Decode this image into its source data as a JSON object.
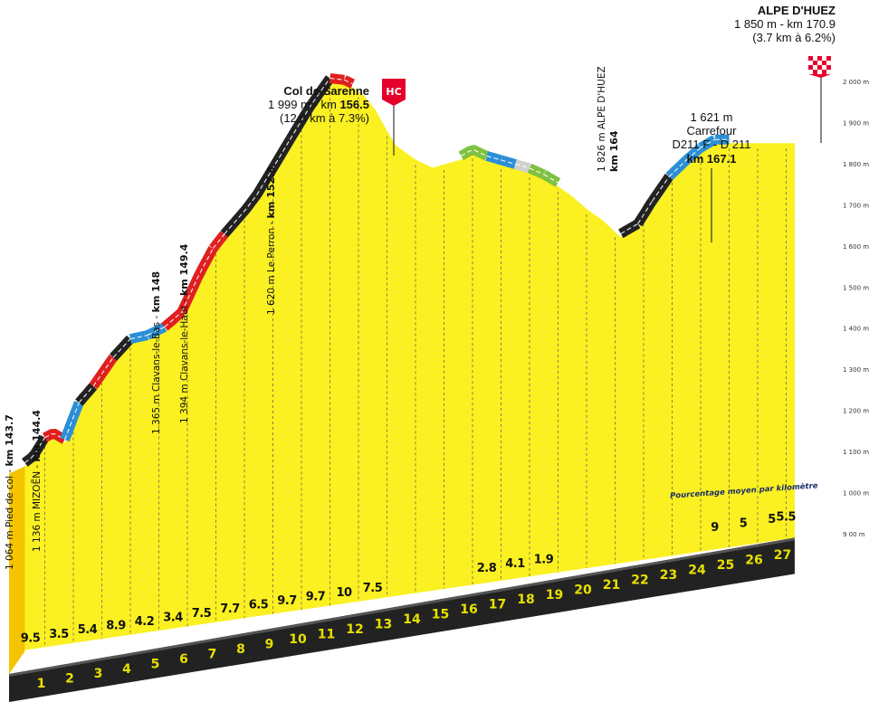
{
  "chart_data": {
    "type": "area",
    "xlabel": "",
    "ylabel": "",
    "ylim": [
      900,
      2000
    ],
    "x_ticks": [
      1,
      2,
      3,
      4,
      5,
      6,
      7,
      8,
      9,
      10,
      11,
      12,
      13,
      14,
      15,
      16,
      17,
      18,
      19,
      20,
      21,
      22,
      23,
      24,
      25,
      26,
      27
    ],
    "y_ticks": [
      {
        "value": 900,
        "label": "9 00 m"
      },
      {
        "value": 1000,
        "label": "1 000 m"
      },
      {
        "value": 1100,
        "label": "1 100 m"
      },
      {
        "value": 1200,
        "label": "1 200 m"
      },
      {
        "value": 1300,
        "label": "1 300 m"
      },
      {
        "value": 1400,
        "label": "1 400 m"
      },
      {
        "value": 1500,
        "label": "1 500 m"
      },
      {
        "value": 1600,
        "label": "1 600 m"
      },
      {
        "value": 1700,
        "label": "1 700 m"
      },
      {
        "value": 1800,
        "label": "1 800 m"
      },
      {
        "value": 1900,
        "label": "1 900 m"
      },
      {
        "value": 2000,
        "label": "2 000 m"
      }
    ],
    "profile": {
      "x": [
        0.3,
        0.6,
        1.0,
        1.3,
        1.7,
        2.2,
        2.7,
        3.4,
        4.0,
        4.6,
        5.2,
        5.8,
        6.4,
        6.9,
        7.3,
        8.3,
        9.0,
        9.6,
        10.3,
        11.0,
        11.5,
        11.8,
        12.2,
        12.6,
        13.0,
        13.3,
        14.0,
        14.6,
        15.1,
        15.6,
        16.0,
        16.5,
        17.0,
        17.5,
        18.0,
        18.5,
        19.0,
        19.5,
        20.0,
        20.6,
        21.2,
        21.8,
        22.3,
        22.9,
        23.5,
        24.0,
        24.5,
        25.0,
        25.6,
        26.2,
        26.8,
        27.3
      ],
      "y": [
        1064,
        1080,
        1125,
        1136,
        1120,
        1210,
        1250,
        1320,
        1365,
        1374,
        1394,
        1430,
        1520,
        1585,
        1620,
        1700,
        1780,
        1850,
        1930,
        1999,
        1995,
        1985,
        1965,
        1930,
        1880,
        1845,
        1810,
        1790,
        1800,
        1810,
        1826,
        1810,
        1800,
        1790,
        1780,
        1765,
        1745,
        1720,
        1690,
        1660,
        1621,
        1645,
        1700,
        1760,
        1800,
        1830,
        1850,
        1850,
        1850,
        1850,
        1850,
        1850
      ]
    },
    "gradients": {
      "bottom": [
        {
          "km": 1,
          "label": "9.5"
        },
        {
          "km": 2,
          "label": "3.5"
        },
        {
          "km": 3,
          "label": "5.4"
        },
        {
          "km": 4,
          "label": "8.9"
        },
        {
          "km": 5,
          "label": "4.2"
        },
        {
          "km": 6,
          "label": "3.4"
        },
        {
          "km": 7,
          "label": "7.5"
        },
        {
          "km": 8,
          "label": "7.7"
        },
        {
          "km": 9,
          "label": "6.5"
        },
        {
          "km": 10,
          "label": "9.7"
        },
        {
          "km": 11,
          "label": "9.7"
        },
        {
          "km": 12,
          "label": "10"
        },
        {
          "km": 13,
          "label": "7.5"
        }
      ],
      "middle": [
        {
          "km": 17,
          "label": "2.8"
        },
        {
          "km": 18,
          "label": "4.1"
        },
        {
          "km": 19,
          "label": "1.9"
        }
      ],
      "right": [
        {
          "km": 25,
          "label": "9"
        },
        {
          "km": 26,
          "label": "5"
        },
        {
          "km": 27,
          "label": "5"
        },
        {
          "km": 27.5,
          "label": "5.5"
        }
      ]
    },
    "annotations": [
      {
        "id": "pied",
        "lines": [
          "1 064 m Pied de col - ",
          "km 143.7"
        ]
      },
      {
        "id": "mizoen",
        "lines": [
          "1 136 m MIZOËN - ",
          "km 144.4"
        ]
      },
      {
        "id": "clavans-bas",
        "lines": [
          "1 365 m Clavans-le-Bas - ",
          "km 148"
        ]
      },
      {
        "id": "clavans-haut",
        "lines": [
          "1 394 m Clavans-le-Haut - ",
          "km 149.4"
        ]
      },
      {
        "id": "perron",
        "lines": [
          "1 620 m Le Perron - ",
          "km 152.3"
        ]
      },
      {
        "id": "alpe-village",
        "lines": [
          "1 826 m ALPE D'HUEZ",
          "km 164"
        ]
      }
    ],
    "summits": {
      "sarenne": {
        "name": "Col de Sarenne",
        "line2a": "1 999 m - km ",
        "line2b": "156.5",
        "line3": "(12.8 km à 7.3%)",
        "flag": "HC"
      },
      "carrefour": {
        "l1": "1 621 m",
        "l2": "Carrefour",
        "l3": "D211 F - D 211",
        "l4": "km 167.1"
      },
      "alpe": {
        "name": "ALPE D'HUEZ",
        "line2": "1 850 m - km 170.9",
        "line3": "(3.7 km à 6.2%)"
      }
    },
    "note": "Pourcentage moyen par kilomètre",
    "colors": {
      "area": "#fbf021",
      "base": "#222222",
      "km_text": "#e8e000",
      "black": "#222222",
      "red": "#e02020",
      "blue": "#2b8fd6",
      "green": "#7fc241",
      "grey": "#d0d0d0",
      "flag_red": "#e4002b"
    }
  }
}
